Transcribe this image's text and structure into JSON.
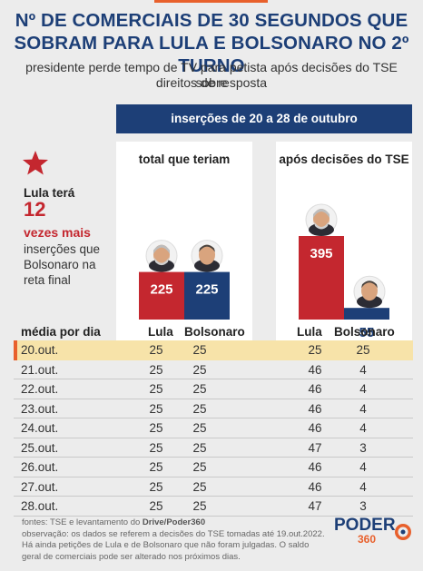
{
  "header": {
    "title_line1": "Nº DE COMERCIAIS DE 30 SEGUNDOS QUE",
    "title_line2": "SOBRAM PARA LULA E BOLSONARO NO 2º TURNO",
    "subtitle_line1": "presidente perde tempo de TV para petista após decisões do TSE sobre",
    "subtitle_line2": "direitos de resposta"
  },
  "period_bar": "inserções de 20 a 28 de outubro",
  "callout": {
    "line1": "Lula terá",
    "number": "12",
    "line2": "vezes mais",
    "line3": "inserções que",
    "line4": "Bolsonaro na",
    "line5": "reta final"
  },
  "labels": {
    "media_por_dia": "média por dia",
    "lula": "Lula",
    "bolsonaro": "Bolsonaro"
  },
  "colors": {
    "lula": "#c4272f",
    "bolsonaro": "#1d3f77",
    "accent": "#e8602c",
    "highlight": "#f7e3a9"
  },
  "chart_data": {
    "type": "bar",
    "panels": [
      {
        "title": "total que teriam",
        "categories": [
          "Lula",
          "Bolsonaro"
        ],
        "values": [
          225,
          225
        ]
      },
      {
        "title": "após decisões do TSE",
        "categories": [
          "Lula",
          "Bolsonaro"
        ],
        "values": [
          395,
          55
        ]
      }
    ],
    "table": {
      "header": "média por dia",
      "rows": [
        {
          "date": "20.out.",
          "lula_total": 25,
          "bolsonaro_total": 25,
          "lula_apos": 25,
          "bolsonaro_apos": 25
        },
        {
          "date": "21.out.",
          "lula_total": 25,
          "bolsonaro_total": 25,
          "lula_apos": 46,
          "bolsonaro_apos": 4
        },
        {
          "date": "22.out.",
          "lula_total": 25,
          "bolsonaro_total": 25,
          "lula_apos": 46,
          "bolsonaro_apos": 4
        },
        {
          "date": "23.out.",
          "lula_total": 25,
          "bolsonaro_total": 25,
          "lula_apos": 46,
          "bolsonaro_apos": 4
        },
        {
          "date": "24.out.",
          "lula_total": 25,
          "bolsonaro_total": 25,
          "lula_apos": 46,
          "bolsonaro_apos": 4
        },
        {
          "date": "25.out.",
          "lula_total": 25,
          "bolsonaro_total": 25,
          "lula_apos": 47,
          "bolsonaro_apos": 3
        },
        {
          "date": "26.out.",
          "lula_total": 25,
          "bolsonaro_total": 25,
          "lula_apos": 46,
          "bolsonaro_apos": 4
        },
        {
          "date": "27.out.",
          "lula_total": 25,
          "bolsonaro_total": 25,
          "lula_apos": 46,
          "bolsonaro_apos": 4
        },
        {
          "date": "28.out.",
          "lula_total": 25,
          "bolsonaro_total": 25,
          "lula_apos": 47,
          "bolsonaro_apos": 3
        }
      ]
    }
  },
  "footer": {
    "sources_prefix": "fontes: TSE e levantamento do ",
    "sources_bold": "Drive/Poder360",
    "note1": "observação: os dados se referem a decisões do TSE tomadas até 19.out.2022.",
    "note2": "Há ainda petições de Lula e de Bolsonaro que não foram julgadas. O saldo",
    "note3": "geral de comerciais pode ser alterado nos próximos dias."
  },
  "logo": {
    "word": "PODER",
    "number": "360"
  }
}
